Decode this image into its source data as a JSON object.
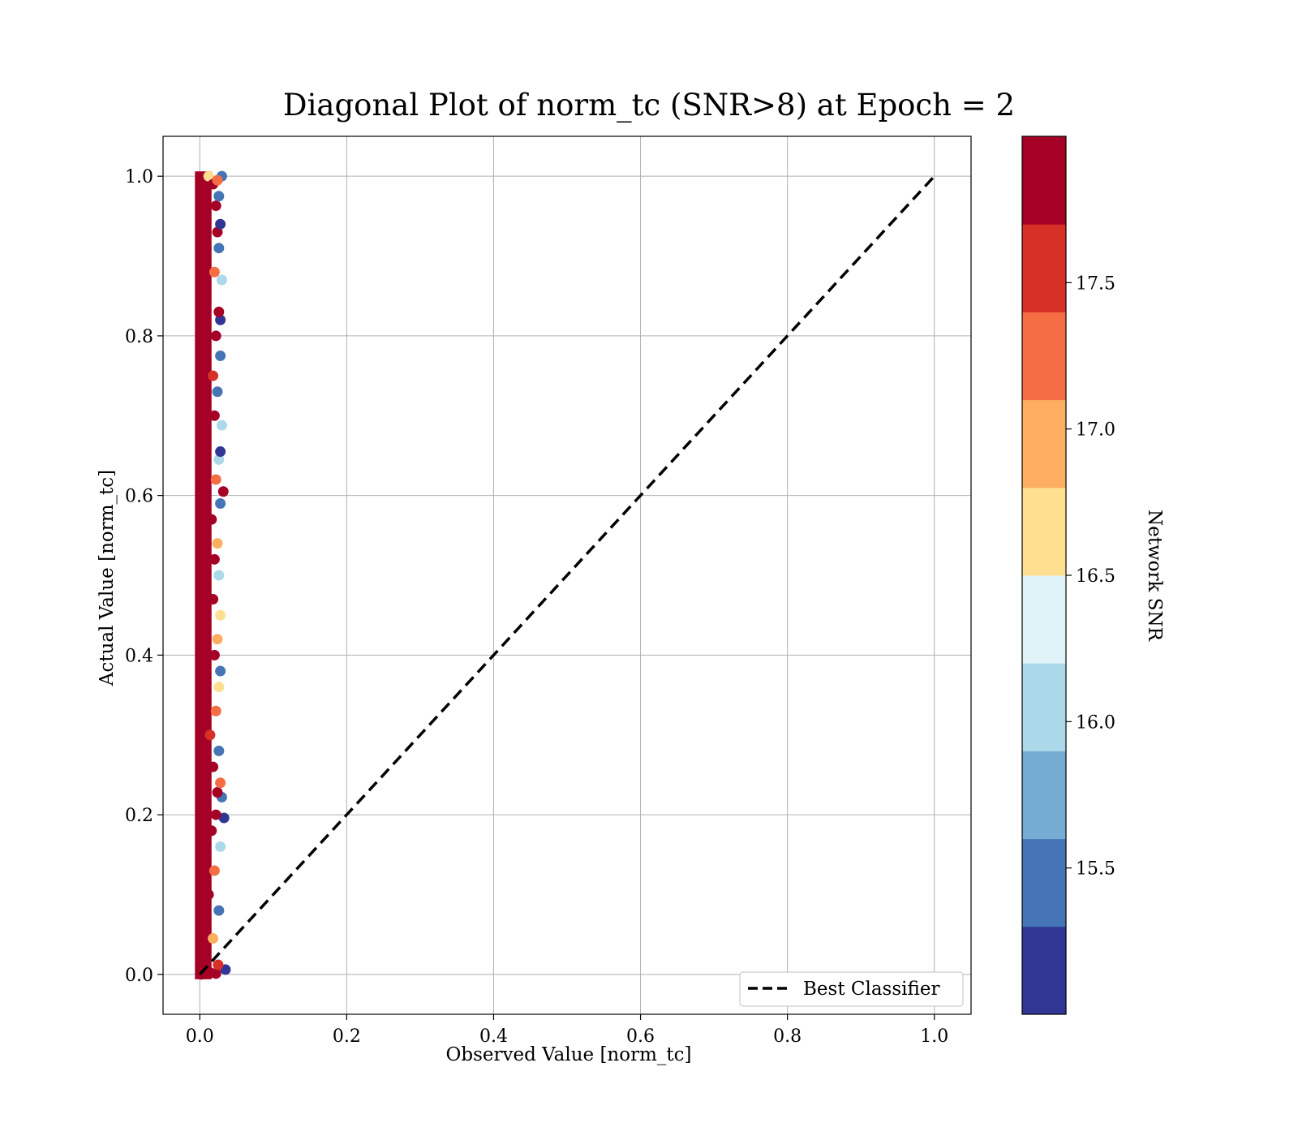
{
  "chart_data": {
    "type": "scatter",
    "title": "Diagonal Plot of norm_tc (SNR>8) at Epoch = 2",
    "xlabel": "Observed Value [norm_tc]",
    "ylabel": "Actual Value [norm_tc]",
    "xlim": [
      -0.05,
      1.05
    ],
    "ylim": [
      -0.05,
      1.05
    ],
    "x_ticks": [
      "0.0",
      "0.2",
      "0.4",
      "0.6",
      "0.8",
      "1.0"
    ],
    "y_ticks": [
      "0.0",
      "0.2",
      "0.4",
      "0.6",
      "0.8",
      "1.0"
    ],
    "grid": true,
    "legend": {
      "position": "bottom-right",
      "entries": [
        "Best Classifier"
      ]
    },
    "reference_line": {
      "name": "Best Classifier",
      "x": [
        0,
        1
      ],
      "y": [
        0,
        1
      ],
      "style": "dashed",
      "color": "#000000"
    },
    "colorbar": {
      "label": "Network SNR",
      "range": [
        15.0,
        18.0
      ],
      "ticks": [
        "15.5",
        "16.0",
        "16.5",
        "17.0",
        "17.5"
      ],
      "colors": [
        "#313695",
        "#4575b4",
        "#74add1",
        "#abd9e9",
        "#e0f3f8",
        "#fee090",
        "#fdae61",
        "#f46d43",
        "#d73027",
        "#a50026"
      ]
    },
    "scatter_points": [
      {
        "x": 0.002,
        "y": 0.0,
        "snr": 17.9
      },
      {
        "x": 0.008,
        "y": 0.004,
        "snr": 17.8
      },
      {
        "x": 0.015,
        "y": 0.002,
        "snr": 17.9
      },
      {
        "x": 0.022,
        "y": 0.001,
        "snr": 17.9
      },
      {
        "x": 0.035,
        "y": 0.006,
        "snr": 15.2
      },
      {
        "x": 0.025,
        "y": 0.012,
        "snr": 17.6
      },
      {
        "x": 0.004,
        "y": 0.03,
        "snr": 17.9
      },
      {
        "x": 0.018,
        "y": 0.045,
        "snr": 16.8
      },
      {
        "x": 0.026,
        "y": 0.08,
        "snr": 15.4
      },
      {
        "x": 0.012,
        "y": 0.1,
        "snr": 17.9
      },
      {
        "x": 0.02,
        "y": 0.13,
        "snr": 17.4
      },
      {
        "x": 0.028,
        "y": 0.16,
        "snr": 16.0
      },
      {
        "x": 0.016,
        "y": 0.18,
        "snr": 17.9
      },
      {
        "x": 0.033,
        "y": 0.196,
        "snr": 15.2
      },
      {
        "x": 0.022,
        "y": 0.2,
        "snr": 17.9
      },
      {
        "x": 0.03,
        "y": 0.222,
        "snr": 15.6
      },
      {
        "x": 0.024,
        "y": 0.228,
        "snr": 17.9
      },
      {
        "x": 0.028,
        "y": 0.24,
        "snr": 17.4
      },
      {
        "x": 0.018,
        "y": 0.26,
        "snr": 17.9
      },
      {
        "x": 0.026,
        "y": 0.28,
        "snr": 15.3
      },
      {
        "x": 0.014,
        "y": 0.3,
        "snr": 17.6
      },
      {
        "x": 0.022,
        "y": 0.33,
        "snr": 17.2
      },
      {
        "x": 0.026,
        "y": 0.36,
        "snr": 16.7
      },
      {
        "x": 0.028,
        "y": 0.38,
        "snr": 15.5
      },
      {
        "x": 0.02,
        "y": 0.4,
        "snr": 17.8
      },
      {
        "x": 0.024,
        "y": 0.42,
        "snr": 17.0
      },
      {
        "x": 0.028,
        "y": 0.45,
        "snr": 16.6
      },
      {
        "x": 0.018,
        "y": 0.47,
        "snr": 17.9
      },
      {
        "x": 0.026,
        "y": 0.5,
        "snr": 16.2
      },
      {
        "x": 0.02,
        "y": 0.52,
        "snr": 17.9
      },
      {
        "x": 0.024,
        "y": 0.54,
        "snr": 16.9
      },
      {
        "x": 0.016,
        "y": 0.57,
        "snr": 17.9
      },
      {
        "x": 0.028,
        "y": 0.59,
        "snr": 15.4
      },
      {
        "x": 0.032,
        "y": 0.605,
        "snr": 17.9
      },
      {
        "x": 0.022,
        "y": 0.62,
        "snr": 17.3
      },
      {
        "x": 0.026,
        "y": 0.645,
        "snr": 16.1
      },
      {
        "x": 0.028,
        "y": 0.655,
        "snr": 15.2
      },
      {
        "x": 0.03,
        "y": 0.688,
        "snr": 16.0
      },
      {
        "x": 0.02,
        "y": 0.7,
        "snr": 17.9
      },
      {
        "x": 0.024,
        "y": 0.73,
        "snr": 15.5
      },
      {
        "x": 0.018,
        "y": 0.75,
        "snr": 17.5
      },
      {
        "x": 0.028,
        "y": 0.775,
        "snr": 15.4
      },
      {
        "x": 0.022,
        "y": 0.8,
        "snr": 17.9
      },
      {
        "x": 0.028,
        "y": 0.82,
        "snr": 15.2
      },
      {
        "x": 0.026,
        "y": 0.83,
        "snr": 17.9
      },
      {
        "x": 0.03,
        "y": 0.87,
        "snr": 16.0
      },
      {
        "x": 0.02,
        "y": 0.88,
        "snr": 17.4
      },
      {
        "x": 0.026,
        "y": 0.91,
        "snr": 15.6
      },
      {
        "x": 0.024,
        "y": 0.93,
        "snr": 17.9
      },
      {
        "x": 0.028,
        "y": 0.94,
        "snr": 15.2
      },
      {
        "x": 0.022,
        "y": 0.963,
        "snr": 17.9
      },
      {
        "x": 0.026,
        "y": 0.975,
        "snr": 15.5
      },
      {
        "x": 0.03,
        "y": 1.0,
        "snr": 15.6
      },
      {
        "x": 0.012,
        "y": 1.0,
        "snr": 16.7
      },
      {
        "x": 0.018,
        "y": 0.99,
        "snr": 17.9
      },
      {
        "x": 0.024,
        "y": 0.995,
        "snr": 17.2
      }
    ]
  }
}
